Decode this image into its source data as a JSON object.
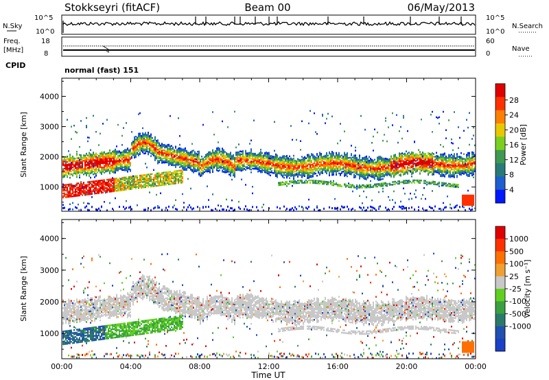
{
  "header": {
    "station": "Stokkseyri (fitACF)",
    "beam": "Beam 00",
    "date": "06/May/2013"
  },
  "nsky_panel": {
    "left_label": "N.Sky",
    "left_ticks": [
      "10^5",
      "10^0"
    ],
    "right_ticks": [
      "10^5",
      "10^0"
    ],
    "right_label": "N.Search"
  },
  "freq_panel": {
    "left_label_1": "Freq.",
    "left_label_2": "[MHz]",
    "left_ticks": [
      "18",
      "8"
    ],
    "right_ticks": [
      "60",
      "0"
    ],
    "right_label": "Nave",
    "marker": "4"
  },
  "cpid_panel": {
    "label": "CPID",
    "mode": "normal (fast) 151"
  },
  "chart_data": [
    {
      "type": "heatmap",
      "quantity": "Power",
      "ylabel": "Slant Range [km]",
      "y_ticks": [
        1000,
        2000,
        3000,
        4000
      ],
      "ylim": [
        200,
        4600
      ],
      "xlim_hours": [
        0,
        24
      ],
      "colorbar_label": "Power [dB]",
      "colorbar_ticks": [
        4,
        8,
        12,
        16,
        20,
        24,
        28
      ],
      "colors": [
        "#0018ff",
        "#1e5fd0",
        "#2b7a7a",
        "#3d9a50",
        "#7ad020",
        "#e8c800",
        "#ff8000",
        "#ff3000",
        "#e00000"
      ]
    },
    {
      "type": "heatmap",
      "quantity": "Velocity",
      "ylabel": "Slant Range [km]",
      "y_ticks": [
        1000,
        2000,
        3000,
        4000
      ],
      "ylim": [
        200,
        4600
      ],
      "xlim_hours": [
        0,
        24
      ],
      "colorbar_label": "Velocity [m s⁻¹]",
      "colorbar_ticks": [
        1000,
        500,
        100,
        25,
        -25,
        -100,
        -500,
        -1000
      ],
      "colors": [
        "#1a40c8",
        "#2050b0",
        "#2a7a6a",
        "#3aa040",
        "#60d020",
        "#c8c8c8",
        "#f0a030",
        "#ff7000",
        "#ff3000",
        "#e00000"
      ]
    }
  ],
  "x_axis": {
    "label": "Time UT",
    "ticks": [
      "00:00",
      "04:00",
      "08:00",
      "12:00",
      "16:00",
      "20:00",
      "00:00"
    ]
  }
}
